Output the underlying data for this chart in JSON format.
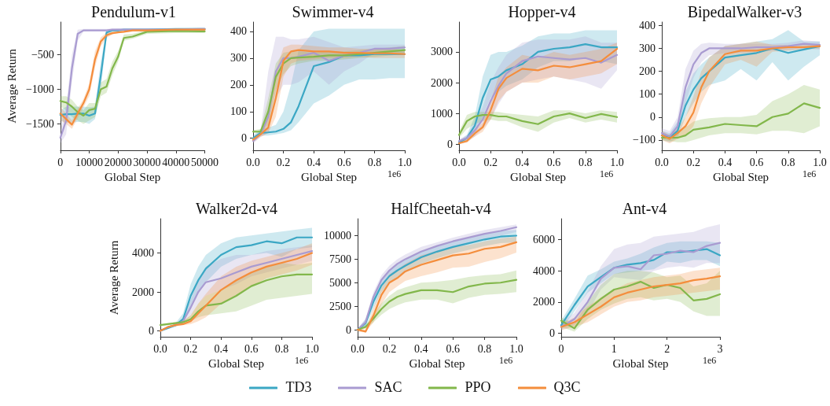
{
  "chart_data": [
    {
      "type": "line",
      "title": "Pendulum-v1",
      "xlabel": "Global Step",
      "ylabel": "Average Return",
      "legend": "bottom",
      "x": [
        0,
        2000,
        4000,
        6000,
        8000,
        10000,
        12000,
        14000,
        16000,
        18000,
        20000,
        22000,
        25000,
        30000,
        40000,
        50000
      ],
      "xlim": [
        0,
        50000
      ],
      "xticks": [
        0,
        10000,
        20000,
        30000,
        40000,
        50000
      ],
      "ylim": [
        -1880,
        -30
      ],
      "yticks": [
        {
          "value": -1500,
          "label": "−1500"
        },
        {
          "value": -1000,
          "label": "−1000"
        },
        {
          "value": -500,
          "label": "−500"
        }
      ],
      "series": [
        {
          "name": "TD3",
          "color": "#3ba7c4",
          "values": [
            -1370,
            -1360,
            -1360,
            -1350,
            -1350,
            -1380,
            -1350,
            -800,
            -180,
            -150,
            -150,
            -140,
            -140,
            -140,
            -130,
            -130
          ],
          "lower": [
            -1450,
            -1480,
            -1480,
            -1470,
            -1470,
            -1500,
            -1430,
            -1000,
            -250,
            -170,
            -160,
            -155,
            -150,
            -150,
            -145,
            -140
          ],
          "upper": [
            -1300,
            -1250,
            -1250,
            -1250,
            -1250,
            -1260,
            -1250,
            -600,
            -150,
            -135,
            -130,
            -130,
            -130,
            -125,
            -120,
            -115
          ]
        },
        {
          "name": "SAC",
          "color": "#a99bd1",
          "values": [
            -1700,
            -1450,
            -700,
            -200,
            -150,
            -150,
            -150,
            -150,
            -150,
            -140,
            -140,
            -140,
            -140,
            -140,
            -140,
            -130
          ],
          "lower": [
            -1780,
            -1650,
            -900,
            -300,
            -170,
            -160,
            -160,
            -160,
            -160,
            -155,
            -155,
            -155,
            -155,
            -155,
            -155,
            -145
          ],
          "upper": [
            -1600,
            -1250,
            -500,
            -140,
            -130,
            -130,
            -130,
            -130,
            -130,
            -125,
            -125,
            -125,
            -125,
            -125,
            -125,
            -115
          ]
        },
        {
          "name": "PPO",
          "color": "#82b74b",
          "values": [
            -1170,
            -1190,
            -1250,
            -1330,
            -1380,
            -1300,
            -1280,
            -1000,
            -960,
            -700,
            -530,
            -260,
            -240,
            -170,
            -160,
            -165
          ],
          "lower": [
            -1250,
            -1300,
            -1400,
            -1450,
            -1500,
            -1450,
            -1400,
            -1100,
            -1050,
            -800,
            -600,
            -300,
            -270,
            -200,
            -190,
            -190
          ],
          "upper": [
            -1100,
            -1100,
            -1150,
            -1250,
            -1300,
            -1200,
            -1200,
            -900,
            -850,
            -600,
            -450,
            -210,
            -200,
            -150,
            -140,
            -140
          ]
        },
        {
          "name": "Q3C",
          "color": "#f48d3c",
          "values": [
            -1350,
            -1430,
            -1510,
            -1350,
            -1200,
            -1000,
            -570,
            -310,
            -220,
            -190,
            -180,
            -170,
            -150,
            -150,
            -140,
            -140
          ],
          "lower": [
            -1450,
            -1500,
            -1570,
            -1420,
            -1260,
            -1100,
            -680,
            -380,
            -260,
            -210,
            -190,
            -180,
            -170,
            -165,
            -155,
            -155
          ],
          "upper": [
            -1250,
            -1350,
            -1450,
            -1280,
            -1140,
            -920,
            -450,
            -250,
            -180,
            -170,
            -160,
            -150,
            -135,
            -135,
            -125,
            -125
          ]
        }
      ]
    },
    {
      "type": "line",
      "title": "Swimmer-v4",
      "xlabel": "Global Step",
      "annotations": [
        "1e6"
      ],
      "x": [
        0,
        0.05,
        0.1,
        0.15,
        0.2,
        0.25,
        0.3,
        0.4,
        0.5,
        0.6,
        0.7,
        0.8,
        0.9,
        1.0
      ],
      "xlim": [
        0,
        1
      ],
      "xticks": [
        {
          "value": 0,
          "label": "0.0"
        },
        {
          "value": 0.2,
          "label": "0.2"
        },
        {
          "value": 0.4,
          "label": "0.4"
        },
        {
          "value": 0.6,
          "label": "0.6"
        },
        {
          "value": 0.8,
          "label": "0.8"
        },
        {
          "value": 1,
          "label": "1.0"
        }
      ],
      "ylim": [
        -45,
        435
      ],
      "yticks": [
        0,
        100,
        200,
        300,
        400
      ],
      "series": [
        {
          "color": "#3ba7c4",
          "values": [
            0,
            20,
            22,
            25,
            35,
            60,
            120,
            270,
            285,
            310,
            310,
            315,
            315,
            315
          ],
          "lower": [
            -10,
            10,
            10,
            15,
            20,
            30,
            60,
            130,
            160,
            200,
            220,
            220,
            225,
            225
          ],
          "upper": [
            10,
            35,
            40,
            50,
            100,
            200,
            330,
            400,
            410,
            410,
            410,
            410,
            410,
            410
          ]
        },
        {
          "color": "#a99bd1",
          "values": [
            -10,
            15,
            80,
            250,
            300,
            300,
            305,
            320,
            290,
            310,
            320,
            335,
            335,
            340
          ],
          "lower": [
            -20,
            5,
            20,
            150,
            200,
            200,
            210,
            250,
            200,
            250,
            280,
            320,
            320,
            320
          ],
          "upper": [
            5,
            30,
            250,
            380,
            380,
            370,
            370,
            380,
            360,
            340,
            345,
            350,
            350,
            350
          ]
        },
        {
          "color": "#82b74b",
          "values": [
            25,
            25,
            100,
            230,
            280,
            300,
            302,
            305,
            310,
            310,
            315,
            320,
            325,
            330
          ],
          "lower": [
            20,
            20,
            50,
            180,
            240,
            270,
            280,
            290,
            290,
            295,
            300,
            305,
            310,
            315
          ],
          "upper": [
            30,
            35,
            150,
            280,
            320,
            325,
            325,
            320,
            325,
            325,
            330,
            335,
            340,
            345
          ]
        },
        {
          "color": "#f48d3c",
          "values": [
            -5,
            15,
            40,
            150,
            290,
            325,
            330,
            325,
            325,
            320,
            320,
            318,
            318,
            315
          ],
          "lower": [
            -15,
            5,
            20,
            80,
            230,
            280,
            290,
            295,
            300,
            300,
            305,
            300,
            300,
            300
          ],
          "upper": [
            5,
            25,
            80,
            250,
            340,
            350,
            350,
            345,
            340,
            340,
            335,
            335,
            335,
            330
          ]
        }
      ]
    },
    {
      "type": "line",
      "title": "Hopper-v4",
      "xlabel": "Global Step",
      "annotations": [
        "1e6"
      ],
      "x": [
        0,
        0.05,
        0.1,
        0.15,
        0.2,
        0.25,
        0.3,
        0.4,
        0.5,
        0.6,
        0.7,
        0.8,
        0.9,
        1.0
      ],
      "xlim": [
        0,
        1
      ],
      "xticks": [
        {
          "value": 0,
          "label": "0.0"
        },
        {
          "value": 0.2,
          "label": "0.2"
        },
        {
          "value": 0.4,
          "label": "0.4"
        },
        {
          "value": 0.6,
          "label": "0.6"
        },
        {
          "value": 0.8,
          "label": "0.8"
        },
        {
          "value": 1,
          "label": "1.0"
        }
      ],
      "ylim": [
        -200,
        3970
      ],
      "yticks": [
        0,
        1000,
        2000,
        3000
      ],
      "series": [
        {
          "color": "#3ba7c4",
          "values": [
            50,
            200,
            600,
            1500,
            2100,
            2200,
            2400,
            2600,
            3000,
            3100,
            3150,
            3250,
            3150,
            3150
          ],
          "lower": [
            0,
            100,
            300,
            900,
            1500,
            1700,
            1900,
            2100,
            2500,
            2700,
            2700,
            2800,
            2700,
            2600
          ],
          "upper": [
            100,
            300,
            900,
            2200,
            2900,
            3000,
            3000,
            3200,
            3500,
            3600,
            3600,
            3700,
            3700,
            3700
          ]
        },
        {
          "color": "#a99bd1",
          "values": [
            100,
            200,
            450,
            800,
            1400,
            1900,
            2300,
            2700,
            2850,
            2800,
            2750,
            2800,
            2650,
            2900
          ],
          "lower": [
            50,
            100,
            250,
            500,
            800,
            1300,
            1700,
            2000,
            2100,
            2200,
            2100,
            2000,
            1800,
            2400
          ],
          "upper": [
            150,
            300,
            700,
            1200,
            2000,
            2500,
            2900,
            3300,
            3400,
            3400,
            3400,
            3500,
            3300,
            3300
          ]
        },
        {
          "color": "#82b74b",
          "values": [
            300,
            750,
            900,
            950,
            950,
            900,
            900,
            750,
            650,
            900,
            1000,
            850,
            980,
            880
          ],
          "lower": [
            200,
            500,
            650,
            750,
            800,
            750,
            750,
            550,
            400,
            700,
            850,
            700,
            800,
            700
          ],
          "upper": [
            400,
            950,
            1050,
            1050,
            1050,
            1050,
            1000,
            950,
            900,
            1100,
            1100,
            1000,
            1100,
            1050
          ]
        },
        {
          "color": "#f48d3c",
          "values": [
            30,
            100,
            350,
            550,
            1100,
            1800,
            2150,
            2450,
            2400,
            2550,
            2500,
            2600,
            2700,
            3100
          ],
          "lower": [
            0,
            50,
            250,
            400,
            800,
            1400,
            1700,
            2000,
            2000,
            2200,
            2100,
            2200,
            2300,
            2600
          ],
          "upper": [
            60,
            200,
            450,
            700,
            1400,
            2200,
            2500,
            2900,
            2800,
            3000,
            2900,
            3000,
            3100,
            3300
          ]
        }
      ]
    },
    {
      "type": "line",
      "title": "BipedalWalker-v3",
      "xlabel": "Global Step",
      "annotations": [
        "1e6"
      ],
      "x": [
        0,
        0.05,
        0.1,
        0.15,
        0.2,
        0.25,
        0.3,
        0.4,
        0.5,
        0.6,
        0.7,
        0.8,
        0.9,
        1.0
      ],
      "xlim": [
        0,
        1
      ],
      "xticks": [
        {
          "value": 0,
          "label": "0.0"
        },
        {
          "value": 0.2,
          "label": "0.2"
        },
        {
          "value": 0.4,
          "label": "0.4"
        },
        {
          "value": 0.6,
          "label": "0.6"
        },
        {
          "value": 0.8,
          "label": "0.8"
        },
        {
          "value": 1,
          "label": "1.0"
        }
      ],
      "ylim": [
        -145,
        415
      ],
      "yticks": [
        {
          "value": -100,
          "label": "−100"
        },
        0,
        100,
        200,
        300,
        400
      ],
      "series": [
        {
          "color": "#3ba7c4",
          "values": [
            -80,
            -90,
            -60,
            50,
            120,
            170,
            200,
            260,
            270,
            280,
            300,
            280,
            295,
            310
          ],
          "lower": [
            -100,
            -110,
            -90,
            0,
            60,
            110,
            140,
            160,
            210,
            160,
            240,
            160,
            220,
            270
          ],
          "upper": [
            -60,
            -70,
            -20,
            110,
            190,
            230,
            260,
            310,
            320,
            330,
            340,
            380,
            330,
            330
          ]
        },
        {
          "color": "#a99bd1",
          "values": [
            -70,
            -85,
            -40,
            130,
            230,
            280,
            300,
            300,
            300,
            305,
            305,
            310,
            320,
            315
          ],
          "lower": [
            -90,
            -100,
            -70,
            60,
            170,
            240,
            270,
            280,
            280,
            285,
            290,
            295,
            300,
            295
          ],
          "upper": [
            -50,
            -60,
            0,
            210,
            290,
            320,
            325,
            320,
            320,
            320,
            320,
            325,
            335,
            330
          ]
        },
        {
          "color": "#82b74b",
          "values": [
            -90,
            -90,
            -90,
            -80,
            -55,
            -50,
            -45,
            -30,
            -35,
            -40,
            0,
            15,
            60,
            40
          ],
          "lower": [
            -100,
            -105,
            -110,
            -110,
            -100,
            -90,
            -80,
            -70,
            -70,
            -75,
            -60,
            -60,
            -70,
            -40
          ],
          "upper": [
            -80,
            -75,
            -60,
            -45,
            -20,
            -10,
            -5,
            0,
            0,
            10,
            70,
            100,
            140,
            120
          ]
        },
        {
          "color": "#f48d3c",
          "values": [
            -80,
            -95,
            -70,
            -40,
            20,
            130,
            200,
            275,
            290,
            290,
            300,
            305,
            305,
            310
          ],
          "lower": [
            -100,
            -115,
            -95,
            -80,
            -40,
            60,
            130,
            230,
            250,
            220,
            285,
            290,
            295,
            300
          ],
          "upper": [
            -60,
            -80,
            -50,
            0,
            90,
            200,
            260,
            310,
            320,
            330,
            315,
            315,
            315,
            320
          ]
        }
      ]
    },
    {
      "type": "line",
      "title": "Walker2d-v4",
      "xlabel": "Global Step",
      "ylabel": "Average Return",
      "annotations": [
        "1e6"
      ],
      "x": [
        0,
        0.05,
        0.1,
        0.15,
        0.2,
        0.25,
        0.3,
        0.4,
        0.5,
        0.6,
        0.7,
        0.8,
        0.9,
        1.0
      ],
      "xlim": [
        0,
        1
      ],
      "xticks": [
        {
          "value": 0,
          "label": "0.0"
        },
        {
          "value": 0.2,
          "label": "0.2"
        },
        {
          "value": 0.4,
          "label": "0.4"
        },
        {
          "value": 0.6,
          "label": "0.6"
        },
        {
          "value": 0.8,
          "label": "0.8"
        },
        {
          "value": 1,
          "label": "1.0"
        }
      ],
      "ylim": [
        -300,
        5760
      ],
      "yticks": [
        0,
        2000,
        4000
      ],
      "series": [
        {
          "color": "#3ba7c4",
          "values": [
            0,
            150,
            300,
            600,
            1800,
            2600,
            3200,
            3900,
            4300,
            4400,
            4600,
            4500,
            4800,
            4800
          ],
          "lower": [
            0,
            100,
            200,
            400,
            1200,
            1900,
            2500,
            3300,
            3700,
            3900,
            4000,
            3800,
            4200,
            4300
          ],
          "upper": [
            50,
            200,
            400,
            900,
            2400,
            3300,
            3900,
            4500,
            4800,
            4900,
            5000,
            5100,
            5200,
            5300
          ]
        },
        {
          "color": "#a99bd1",
          "values": [
            0,
            200,
            300,
            500,
            1200,
            2000,
            2500,
            2700,
            3000,
            3300,
            3500,
            3700,
            3900,
            4100
          ],
          "lower": [
            0,
            150,
            250,
            400,
            800,
            1400,
            1800,
            2100,
            2400,
            2800,
            3000,
            3200,
            3400,
            3600
          ],
          "upper": [
            50,
            250,
            350,
            700,
            1600,
            2600,
            3300,
            3700,
            3900,
            3900,
            4100,
            4200,
            4300,
            4400
          ]
        },
        {
          "color": "#82b74b",
          "values": [
            300,
            350,
            400,
            450,
            600,
            1000,
            1300,
            1400,
            1800,
            2300,
            2600,
            2800,
            2900,
            2900
          ],
          "lower": [
            250,
            300,
            350,
            400,
            500,
            700,
            800,
            900,
            1000,
            1300,
            1600,
            1700,
            1800,
            1900
          ],
          "upper": [
            350,
            400,
            450,
            500,
            800,
            1400,
            1800,
            2100,
            2600,
            3000,
            3300,
            3500,
            3400,
            3500
          ]
        },
        {
          "color": "#f48d3c",
          "values": [
            0,
            200,
            300,
            350,
            500,
            900,
            1300,
            2100,
            2600,
            3000,
            3300,
            3500,
            3700,
            4000
          ],
          "lower": [
            0,
            150,
            250,
            300,
            350,
            500,
            700,
            1400,
            1800,
            2300,
            2700,
            2900,
            3100,
            3400
          ],
          "upper": [
            50,
            250,
            350,
            500,
            800,
            1400,
            1900,
            2800,
            3300,
            3600,
            3800,
            4000,
            4200,
            4500
          ]
        }
      ]
    },
    {
      "type": "line",
      "title": "HalfCheetah-v4",
      "xlabel": "Global Step",
      "annotations": [
        "1e6"
      ],
      "x": [
        0,
        0.05,
        0.1,
        0.15,
        0.2,
        0.25,
        0.3,
        0.4,
        0.5,
        0.6,
        0.7,
        0.8,
        0.9,
        1.0
      ],
      "xlim": [
        0,
        1
      ],
      "xticks": [
        {
          "value": 0,
          "label": "0.0"
        },
        {
          "value": 0.2,
          "label": "0.2"
        },
        {
          "value": 0.4,
          "label": "0.4"
        },
        {
          "value": 0.6,
          "label": "0.6"
        },
        {
          "value": 0.8,
          "label": "0.8"
        },
        {
          "value": 1,
          "label": "1.0"
        }
      ],
      "ylim": [
        -750,
        11800
      ],
      "yticks": [
        0,
        2500,
        5000,
        7500,
        10000
      ],
      "series": [
        {
          "color": "#3ba7c4",
          "values": [
            0,
            700,
            3000,
            4700,
            5700,
            6300,
            6800,
            7700,
            8300,
            8800,
            9200,
            9600,
            9900,
            10000
          ],
          "lower": [
            -100,
            300,
            2300,
            4000,
            5000,
            5600,
            6100,
            7000,
            7600,
            8100,
            8500,
            8900,
            9200,
            9300
          ],
          "upper": [
            100,
            1100,
            3700,
            5300,
            6300,
            6900,
            7400,
            8300,
            8900,
            9400,
            9800,
            10200,
            10500,
            10600
          ]
        },
        {
          "color": "#a99bd1",
          "values": [
            0,
            800,
            3500,
            5300,
            6300,
            7000,
            7500,
            8300,
            8900,
            9400,
            9800,
            10200,
            10500,
            10900
          ],
          "lower": [
            -100,
            400,
            2800,
            4600,
            5700,
            6400,
            6900,
            7700,
            8300,
            8800,
            9200,
            9600,
            10000,
            10400
          ],
          "upper": [
            100,
            1200,
            4000,
            5800,
            6800,
            7500,
            8000,
            8800,
            9300,
            9800,
            10200,
            10600,
            10900,
            11200
          ]
        },
        {
          "color": "#82b74b",
          "values": [
            0,
            300,
            1200,
            2200,
            3000,
            3500,
            3800,
            4200,
            4200,
            4000,
            4600,
            4900,
            5000,
            5300
          ],
          "lower": [
            -100,
            100,
            800,
            1600,
            2200,
            2600,
            2900,
            3200,
            3200,
            2800,
            3400,
            3700,
            3800,
            4000
          ],
          "upper": [
            100,
            500,
            1700,
            2800,
            3600,
            4200,
            4500,
            5000,
            5100,
            5300,
            5600,
            5800,
            5900,
            6300
          ]
        },
        {
          "color": "#f48d3c",
          "values": [
            0,
            -200,
            1500,
            3700,
            5000,
            5500,
            6200,
            6900,
            7400,
            7900,
            8100,
            8600,
            8800,
            9300
          ],
          "lower": [
            -200,
            -300,
            800,
            2700,
            4000,
            4600,
            5200,
            5700,
            6100,
            6600,
            6700,
            7200,
            7600,
            8200
          ],
          "upper": [
            100,
            0,
            2300,
            4500,
            5900,
            6400,
            7000,
            7900,
            8400,
            8800,
            9000,
            9400,
            9700,
            9900
          ]
        }
      ]
    },
    {
      "type": "line",
      "title": "Ant-v4",
      "xlabel": "Global Step",
      "annotations": [
        "1e6"
      ],
      "x": [
        0,
        0.25,
        0.5,
        0.75,
        1,
        1.25,
        1.5,
        1.75,
        2,
        2.25,
        2.5,
        2.75,
        3
      ],
      "xlim": [
        0,
        3
      ],
      "xticks": [
        0,
        1,
        2,
        3
      ],
      "ylim": [
        -235,
        7350
      ],
      "yticks": [
        0,
        2000,
        4000,
        6000
      ],
      "series": [
        {
          "color": "#3ba7c4",
          "values": [
            500,
            1800,
            3000,
            3600,
            4200,
            4400,
            4500,
            4700,
            5200,
            5200,
            5300,
            5400,
            5000
          ],
          "lower": [
            200,
            1400,
            2600,
            3200,
            3800,
            3900,
            4000,
            4100,
            4600,
            4500,
            4700,
            4700,
            4300
          ],
          "upper": [
            800,
            2200,
            3700,
            4100,
            4600,
            4800,
            5100,
            5500,
            5800,
            5900,
            5900,
            5900,
            5800
          ]
        },
        {
          "color": "#a99bd1",
          "values": [
            400,
            900,
            2000,
            3500,
            4200,
            4300,
            4100,
            5000,
            5100,
            5300,
            5200,
            5600,
            5800
          ],
          "lower": [
            200,
            500,
            1300,
            2800,
            3600,
            3500,
            3400,
            4000,
            4200,
            4300,
            4200,
            4500,
            4500
          ],
          "upper": [
            700,
            1300,
            2700,
            4300,
            5400,
            5700,
            5800,
            6200,
            6300,
            6400,
            6500,
            6800,
            7000
          ]
        },
        {
          "color": "#82b74b",
          "values": [
            800,
            300,
            1500,
            2200,
            2800,
            3000,
            3300,
            2900,
            3100,
            2900,
            2100,
            2200,
            2500
          ],
          "lower": [
            400,
            100,
            900,
            1500,
            1900,
            2200,
            2300,
            2100,
            2200,
            2000,
            1400,
            1100,
            1100
          ],
          "upper": [
            1000,
            600,
            2000,
            3100,
            3800,
            4000,
            4000,
            3900,
            3600,
            3700,
            3000,
            3200,
            4000
          ]
        },
        {
          "color": "#f48d3c",
          "values": [
            400,
            700,
            1200,
            1700,
            2300,
            2600,
            2800,
            3000,
            3100,
            3200,
            3400,
            3500,
            3650
          ],
          "lower": [
            200,
            400,
            700,
            1200,
            1700,
            2000,
            2100,
            2300,
            2400,
            2500,
            2600,
            2700,
            2800
          ],
          "upper": [
            600,
            1000,
            1700,
            2300,
            2800,
            3200,
            3400,
            3600,
            3700,
            3800,
            4000,
            4100,
            4200
          ]
        }
      ]
    }
  ]
}
